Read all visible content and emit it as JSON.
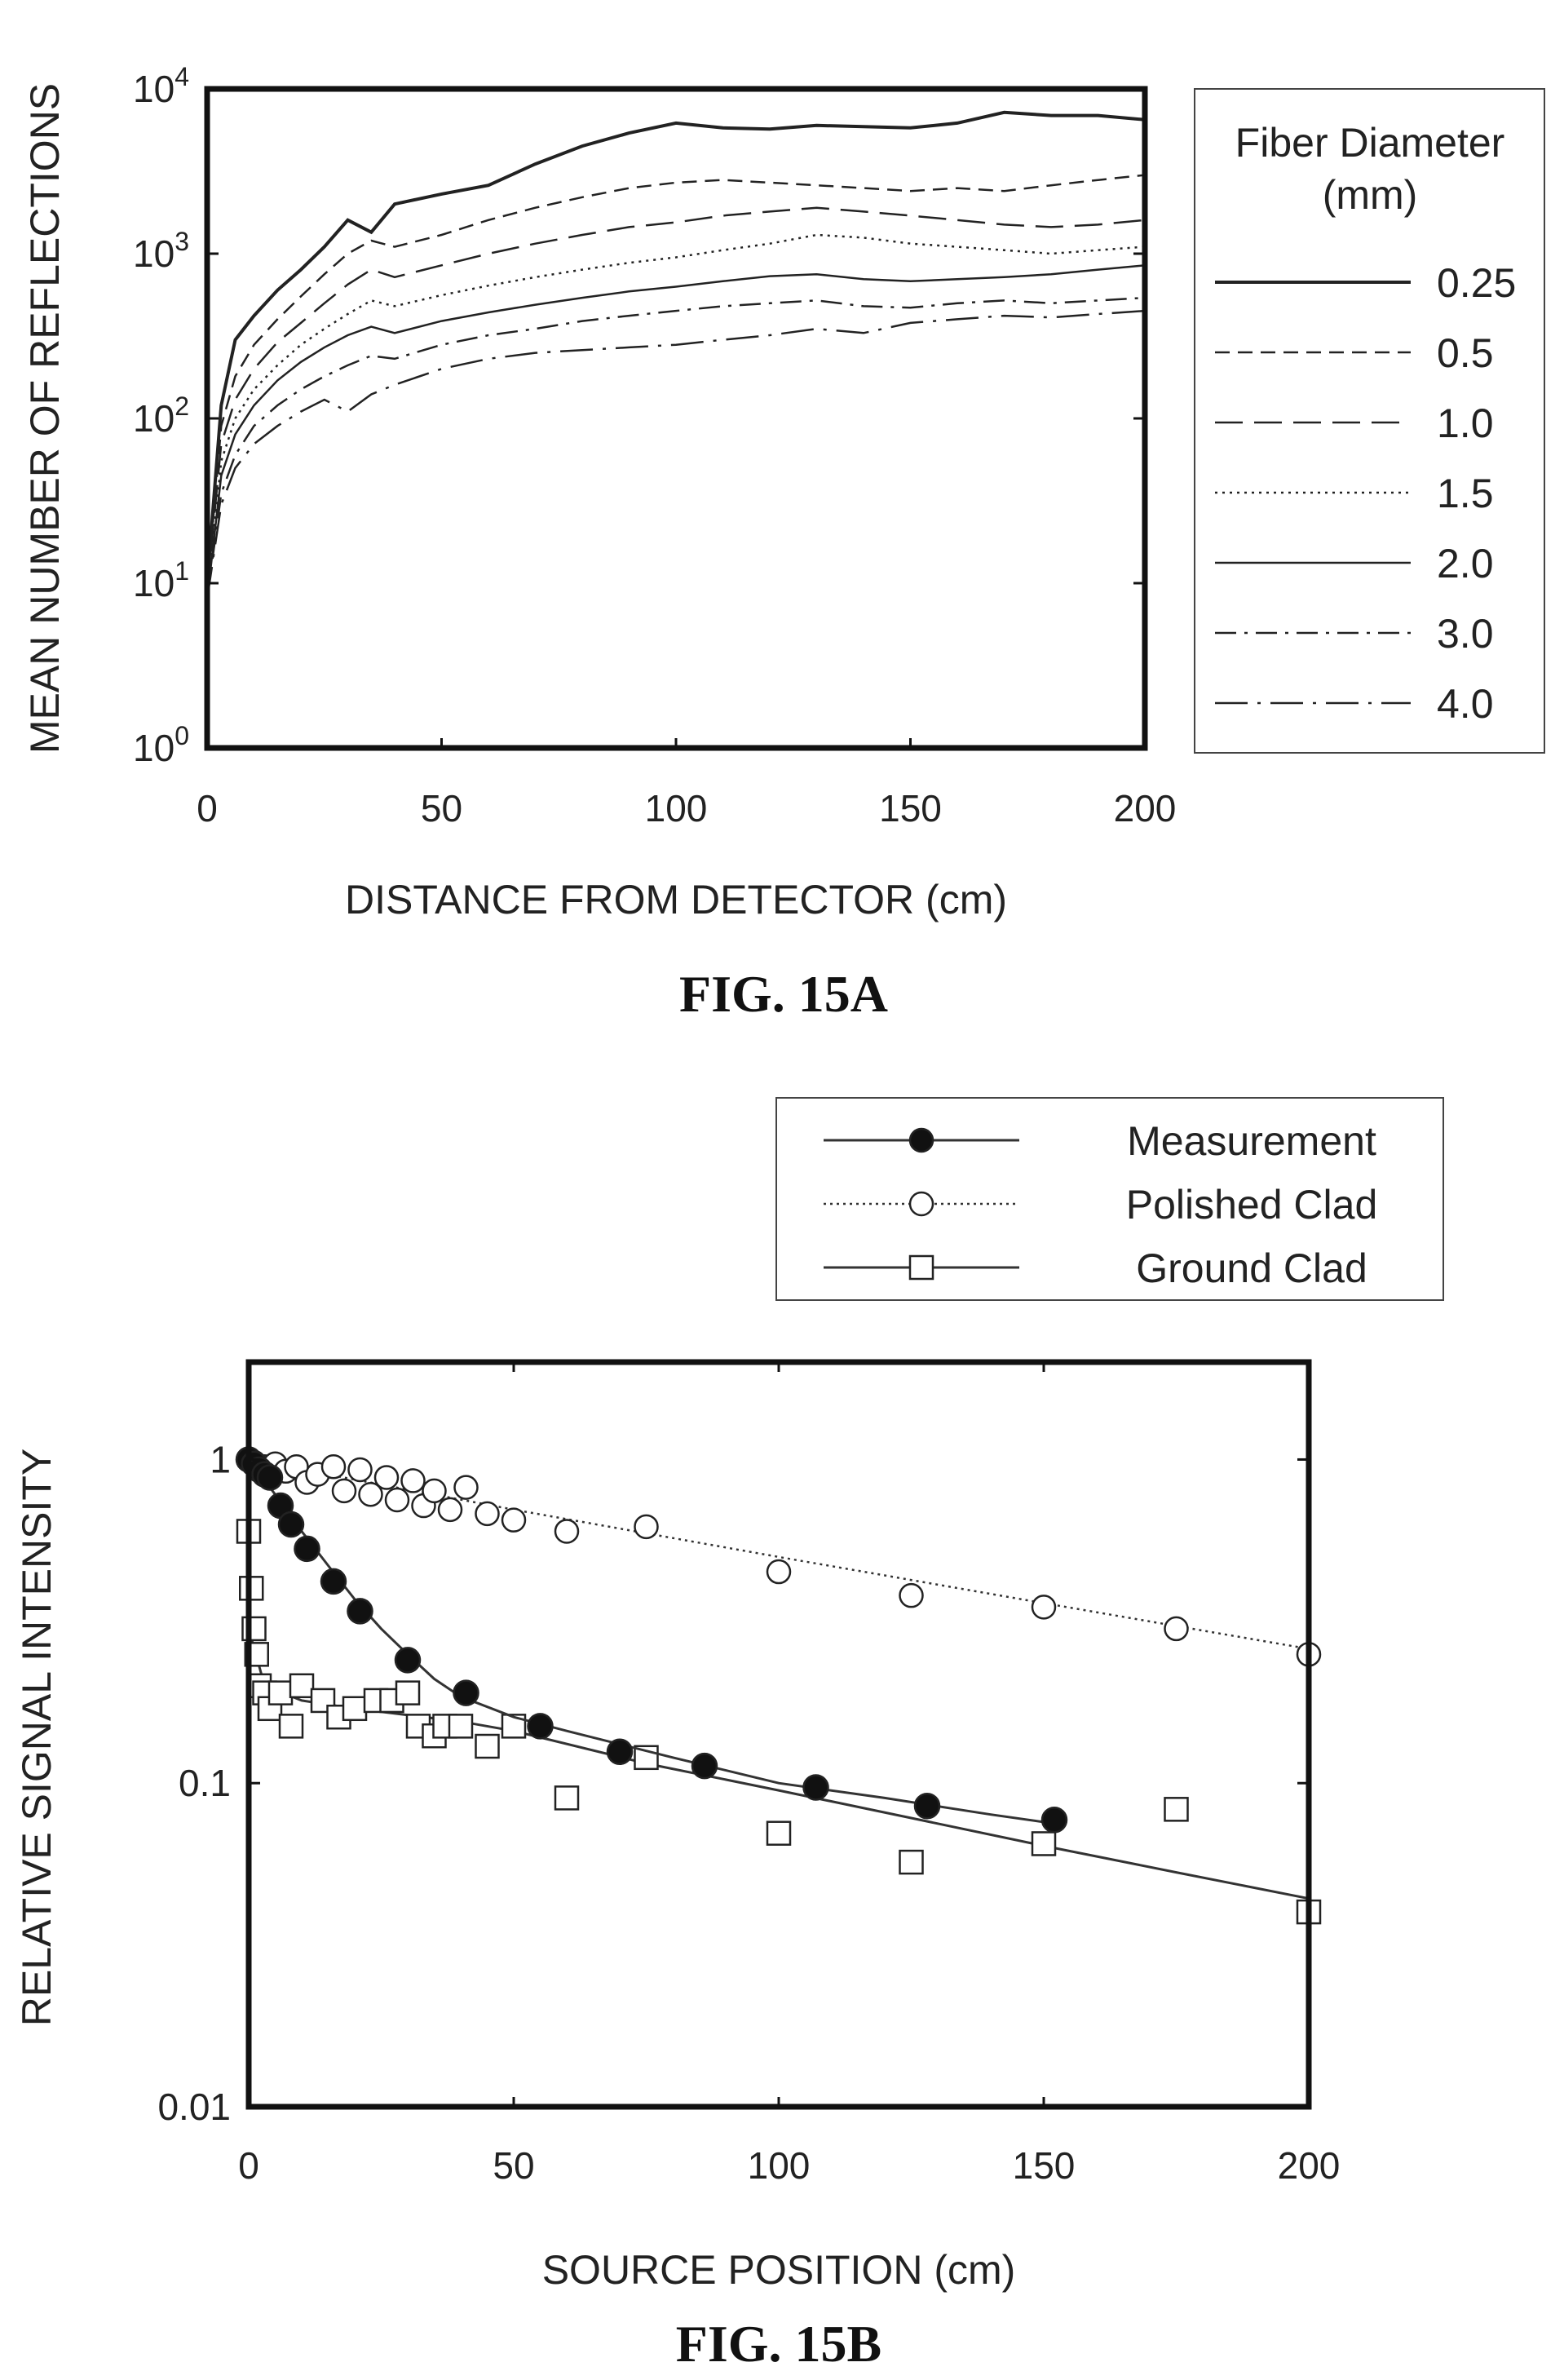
{
  "figures": [
    {
      "caption": "FIG. 15A"
    },
    {
      "caption": "FIG. 15B"
    }
  ],
  "chart_data": [
    {
      "type": "line",
      "xlabel": "DISTANCE FROM DETECTOR (cm)",
      "ylabel": "MEAN NUMBER OF REFLECTIONS",
      "xlim": [
        0,
        200
      ],
      "ylim": [
        1,
        10000
      ],
      "yscale": "log",
      "x_ticks": [
        "0",
        "50",
        "100",
        "150",
        "200"
      ],
      "y_ticks": [
        {
          "base": "10",
          "exp": "0"
        },
        {
          "base": "10",
          "exp": "1"
        },
        {
          "base": "10",
          "exp": "2"
        },
        {
          "base": "10",
          "exp": "3"
        },
        {
          "base": "10",
          "exp": "4"
        }
      ],
      "grid": false,
      "legend_position": "right",
      "legend_title": [
        "Fiber Diameter",
        "(mm)"
      ],
      "series": [
        {
          "name": "0.25",
          "style": "solid",
          "x": [
            0,
            3,
            6,
            10,
            15,
            20,
            25,
            30,
            35,
            40,
            50,
            60,
            70,
            80,
            90,
            100,
            110,
            120,
            130,
            140,
            150,
            160,
            170,
            180,
            190,
            200
          ],
          "y": [
            10,
            120,
            300,
            420,
            600,
            800,
            1100,
            1600,
            1350,
            2000,
            2300,
            2600,
            3500,
            4500,
            5400,
            6200,
            5800,
            5700,
            6000,
            5900,
            5800,
            6200,
            7200,
            6900,
            6900,
            6500
          ]
        },
        {
          "name": "0.5",
          "style": "dashed",
          "x": [
            0,
            3,
            6,
            10,
            15,
            20,
            25,
            30,
            35,
            40,
            50,
            60,
            70,
            80,
            90,
            100,
            110,
            120,
            130,
            140,
            150,
            160,
            170,
            180,
            190,
            200
          ],
          "y": [
            9,
            90,
            180,
            280,
            400,
            550,
            750,
            1000,
            1200,
            1100,
            1300,
            1600,
            1900,
            2200,
            2500,
            2700,
            2800,
            2700,
            2600,
            2500,
            2400,
            2500,
            2400,
            2600,
            2800,
            3000
          ]
        },
        {
          "name": "1.0",
          "style": "long-dash",
          "x": [
            0,
            3,
            6,
            10,
            15,
            20,
            25,
            30,
            35,
            40,
            50,
            60,
            70,
            80,
            90,
            100,
            110,
            120,
            130,
            140,
            150,
            160,
            170,
            180,
            190,
            200
          ],
          "y": [
            9,
            70,
            130,
            200,
            290,
            380,
            500,
            650,
            800,
            720,
            850,
            1000,
            1150,
            1300,
            1450,
            1550,
            1700,
            1800,
            1900,
            1800,
            1700,
            1600,
            1500,
            1450,
            1500,
            1600
          ]
        },
        {
          "name": "1.5",
          "style": "dotted",
          "x": [
            0,
            3,
            6,
            10,
            15,
            20,
            25,
            30,
            35,
            40,
            50,
            60,
            70,
            80,
            90,
            100,
            110,
            120,
            130,
            140,
            150,
            160,
            170,
            180,
            190,
            200
          ],
          "y": [
            8,
            55,
            100,
            150,
            210,
            280,
            350,
            430,
            520,
            480,
            560,
            640,
            720,
            800,
            880,
            950,
            1050,
            1150,
            1300,
            1250,
            1150,
            1100,
            1050,
            1000,
            1050,
            1100
          ]
        },
        {
          "name": "2.0",
          "style": "solid-thin",
          "x": [
            0,
            3,
            6,
            10,
            15,
            20,
            25,
            30,
            35,
            40,
            50,
            60,
            70,
            80,
            90,
            100,
            110,
            120,
            130,
            140,
            150,
            160,
            170,
            180,
            190,
            200
          ],
          "y": [
            8,
            45,
            80,
            120,
            170,
            220,
            270,
            320,
            360,
            330,
            390,
            440,
            490,
            540,
            590,
            630,
            680,
            730,
            750,
            700,
            680,
            700,
            720,
            750,
            800,
            850
          ]
        },
        {
          "name": "3.0",
          "style": "dash-dot",
          "x": [
            0,
            3,
            6,
            10,
            15,
            20,
            25,
            30,
            35,
            40,
            50,
            60,
            70,
            80,
            90,
            100,
            110,
            120,
            130,
            140,
            150,
            160,
            170,
            180,
            190,
            200
          ],
          "y": [
            8,
            35,
            60,
            90,
            120,
            150,
            180,
            210,
            240,
            230,
            280,
            320,
            350,
            390,
            420,
            450,
            480,
            500,
            520,
            480,
            470,
            500,
            520,
            500,
            520,
            540
          ]
        },
        {
          "name": "4.0",
          "style": "dash-dot-long",
          "x": [
            0,
            3,
            6,
            10,
            15,
            20,
            25,
            30,
            35,
            40,
            50,
            60,
            70,
            80,
            90,
            100,
            110,
            120,
            130,
            140,
            150,
            160,
            170,
            180,
            190,
            200
          ],
          "y": [
            8,
            30,
            50,
            70,
            90,
            110,
            130,
            110,
            140,
            160,
            200,
            230,
            250,
            260,
            270,
            280,
            300,
            320,
            350,
            330,
            380,
            400,
            420,
            410,
            430,
            450
          ]
        }
      ]
    },
    {
      "type": "scatter",
      "xlabel": "SOURCE POSITION (cm)",
      "ylabel": "RELATIVE SIGNAL INTENSITY",
      "xlim": [
        0,
        200
      ],
      "ylim": [
        0.01,
        2
      ],
      "yscale": "log",
      "x_ticks": [
        "0",
        "50",
        "100",
        "150",
        "200"
      ],
      "y_ticks": [
        {
          "label": "1",
          "value": 1
        },
        {
          "label": "0.1",
          "value": 0.1
        },
        {
          "label": "0.01",
          "value": 0.01
        }
      ],
      "grid": false,
      "legend_position": "top-right",
      "series": [
        {
          "name": "Measurement",
          "marker": "filled-circle",
          "line": "solid",
          "points": [
            [
              0,
              1.0
            ],
            [
              1,
              0.97
            ],
            [
              2,
              0.93
            ],
            [
              3,
              0.9
            ],
            [
              4,
              0.88
            ],
            [
              6,
              0.72
            ],
            [
              8,
              0.63
            ],
            [
              11,
              0.53
            ],
            [
              16,
              0.42
            ],
            [
              21,
              0.34
            ],
            [
              30,
              0.24
            ],
            [
              41,
              0.19
            ],
            [
              55,
              0.15
            ],
            [
              70,
              0.125
            ],
            [
              86,
              0.113
            ],
            [
              107,
              0.097
            ],
            [
              128,
              0.085
            ],
            [
              152,
              0.077
            ]
          ],
          "fit": [
            [
              0,
              1.0
            ],
            [
              5,
              0.78
            ],
            [
              10,
              0.6
            ],
            [
              15,
              0.47
            ],
            [
              20,
              0.37
            ],
            [
              25,
              0.3
            ],
            [
              30,
              0.25
            ],
            [
              35,
              0.21
            ],
            [
              40,
              0.185
            ],
            [
              50,
              0.16
            ],
            [
              60,
              0.145
            ],
            [
              80,
              0.12
            ],
            [
              100,
              0.1
            ],
            [
              120,
              0.09
            ],
            [
              140,
              0.08
            ],
            [
              152,
              0.075
            ]
          ]
        },
        {
          "name": "Polished Clad",
          "marker": "open-circle",
          "line": "dotted",
          "points": [
            [
              1,
              0.98
            ],
            [
              3,
              0.95
            ],
            [
              5,
              0.97
            ],
            [
              7,
              0.92
            ],
            [
              9,
              0.95
            ],
            [
              11,
              0.85
            ],
            [
              13,
              0.9
            ],
            [
              16,
              0.95
            ],
            [
              18,
              0.8
            ],
            [
              21,
              0.93
            ],
            [
              23,
              0.78
            ],
            [
              26,
              0.88
            ],
            [
              28,
              0.75
            ],
            [
              31,
              0.86
            ],
            [
              33,
              0.72
            ],
            [
              35,
              0.8
            ],
            [
              38,
              0.7
            ],
            [
              41,
              0.82
            ],
            [
              45,
              0.68
            ],
            [
              50,
              0.65
            ],
            [
              60,
              0.6
            ],
            [
              75,
              0.62
            ],
            [
              100,
              0.45
            ],
            [
              125,
              0.38
            ],
            [
              150,
              0.35
            ],
            [
              175,
              0.3
            ],
            [
              200,
              0.25
            ]
          ],
          "fit": [
            [
              0,
              1.0
            ],
            [
              50,
              0.7
            ],
            [
              100,
              0.5
            ],
            [
              150,
              0.36
            ],
            [
              200,
              0.26
            ]
          ]
        },
        {
          "name": "Ground Clad",
          "marker": "open-square",
          "line": "solid",
          "points": [
            [
              0,
              0.6
            ],
            [
              0.5,
              0.4
            ],
            [
              1,
              0.3
            ],
            [
              1.5,
              0.25
            ],
            [
              2,
              0.2
            ],
            [
              3,
              0.19
            ],
            [
              4,
              0.17
            ],
            [
              6,
              0.19
            ],
            [
              8,
              0.15
            ],
            [
              10,
              0.2
            ],
            [
              14,
              0.18
            ],
            [
              17,
              0.16
            ],
            [
              20,
              0.17
            ],
            [
              24,
              0.18
            ],
            [
              27,
              0.18
            ],
            [
              30,
              0.19
            ],
            [
              32,
              0.15
            ],
            [
              35,
              0.14
            ],
            [
              37,
              0.15
            ],
            [
              40,
              0.15
            ],
            [
              45,
              0.13
            ],
            [
              50,
              0.15
            ],
            [
              60,
              0.09
            ],
            [
              75,
              0.12
            ],
            [
              100,
              0.07
            ],
            [
              125,
              0.057
            ],
            [
              150,
              0.065
            ],
            [
              175,
              0.083
            ],
            [
              200,
              0.04
            ]
          ],
          "fit": [
            [
              0,
              0.3
            ],
            [
              3,
              0.2
            ],
            [
              10,
              0.18
            ],
            [
              20,
              0.17
            ],
            [
              40,
              0.155
            ],
            [
              50,
              0.145
            ],
            [
              75,
              0.115
            ],
            [
              100,
              0.095
            ],
            [
              125,
              0.078
            ],
            [
              150,
              0.064
            ],
            [
              175,
              0.053
            ],
            [
              200,
              0.044
            ]
          ]
        }
      ]
    }
  ]
}
